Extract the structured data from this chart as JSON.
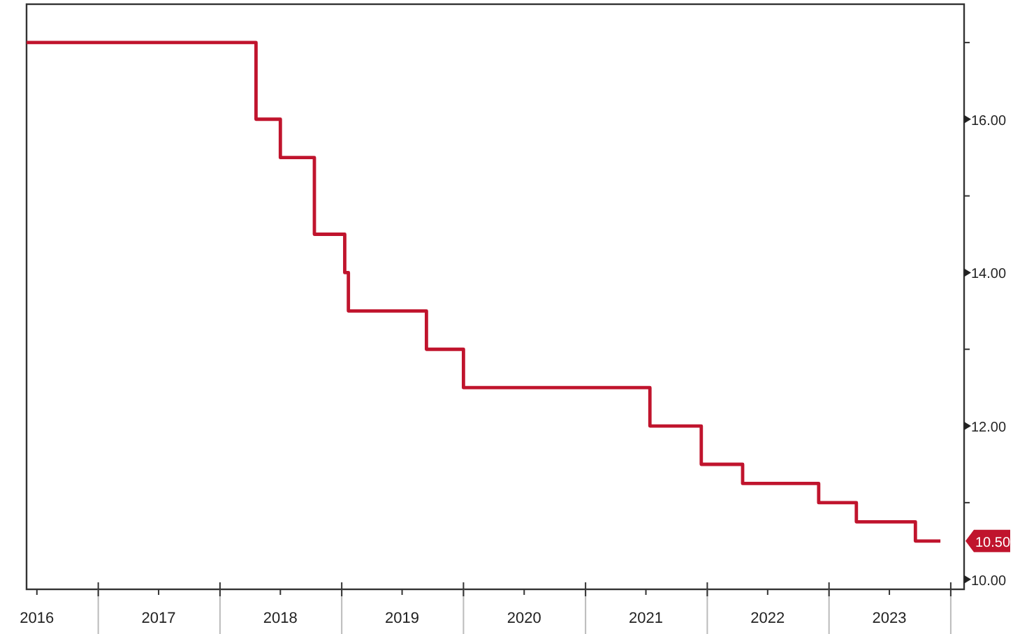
{
  "chart_data": {
    "type": "step",
    "x": [
      "2016-05-31",
      "2018-04-19",
      "2018-07-01",
      "2018-10-11",
      "2019-01-10",
      "2019-01-21",
      "2019-09-12",
      "2020-01-01",
      "2021-07-13",
      "2021-12-14",
      "2022-04-17",
      "2022-12-01",
      "2023-03-24",
      "2023-09-17",
      "2023-12-01"
    ],
    "series": [
      {
        "color": "#c0142d",
        "values": [
          17,
          16,
          15.5,
          14.5,
          14,
          13.5,
          13,
          12.5,
          12,
          11.5,
          11.25,
          11,
          10.75,
          10.5,
          10.5
        ]
      }
    ],
    "xlim": [
      "2016-05-31",
      "2024-02-10"
    ],
    "xticks": [
      {
        "value": "2016-07-01",
        "label": "2016"
      },
      {
        "value": "2017-01-01",
        "label": null
      },
      {
        "value": "2017-07-01",
        "label": "2017"
      },
      {
        "value": "2018-01-01",
        "label": null
      },
      {
        "value": "2018-07-01",
        "label": "2018"
      },
      {
        "value": "2019-01-01",
        "label": null
      },
      {
        "value": "2019-07-01",
        "label": "2019"
      },
      {
        "value": "2020-01-01",
        "label": null
      },
      {
        "value": "2020-07-01",
        "label": "2020"
      },
      {
        "value": "2021-01-01",
        "label": null
      },
      {
        "value": "2021-07-01",
        "label": "2021"
      },
      {
        "value": "2022-01-01",
        "label": null
      },
      {
        "value": "2022-07-01",
        "label": "2022"
      },
      {
        "value": "2023-01-01",
        "label": null
      },
      {
        "value": "2023-07-01",
        "label": "2023"
      },
      {
        "value": "2024-01-01",
        "label": null
      }
    ],
    "ylim": [
      9.87,
      17.5
    ],
    "yticks": [
      {
        "value": 10,
        "label": "10.00"
      },
      {
        "value": 11,
        "label": null
      },
      {
        "value": 12,
        "label": "12.00"
      },
      {
        "value": 13,
        "label": null
      },
      {
        "value": 14,
        "label": "14.00"
      },
      {
        "value": 15,
        "label": null
      },
      {
        "value": 16,
        "label": "16.00"
      },
      {
        "value": 17,
        "label": null
      }
    ],
    "annotations": [
      "10.50"
    ],
    "grid": false,
    "line_style": "solid",
    "marker": "none"
  }
}
